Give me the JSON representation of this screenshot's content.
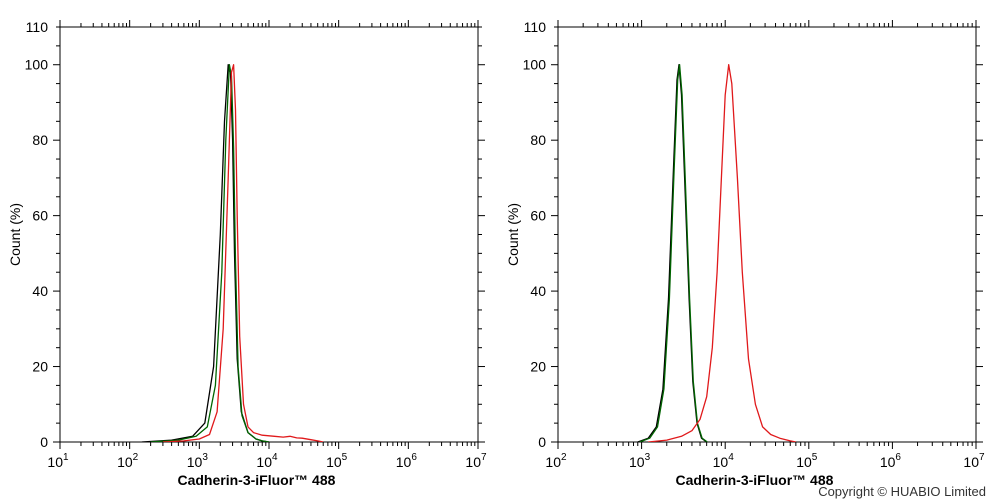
{
  "copyright": "Copyright © HUABIO Limited",
  "chart_data": [
    {
      "type": "line",
      "x_scale": "log",
      "xlim_exp": [
        1,
        7
      ],
      "ylim": [
        0,
        110
      ],
      "y_ticks": [
        0,
        20,
        40,
        60,
        80,
        100,
        110
      ],
      "x_tick_base": "10",
      "x_tick_exponents": [
        "1",
        "2",
        "3",
        "4",
        "5",
        "6",
        "7"
      ],
      "xlabel": "Cadherin-3-iFluor™ 488",
      "ylabel": "Count  (%)",
      "colors": [
        "#000000",
        "#006400",
        "#e0191b"
      ],
      "series": [
        {
          "color": "#000000",
          "x": [
            150,
            400,
            800,
            1200,
            1600,
            2000,
            2300,
            2600,
            2800,
            3000,
            3200,
            3500,
            4000,
            5000,
            6500,
            8000,
            10000
          ],
          "y": [
            0,
            0.5,
            1.5,
            5,
            20,
            55,
            85,
            100,
            98,
            80,
            50,
            22,
            8,
            2.5,
            0.8,
            0.3,
            0
          ]
        },
        {
          "color": "#006400",
          "x": [
            200,
            500,
            900,
            1300,
            1700,
            2100,
            2400,
            2700,
            2900,
            3100,
            3300,
            3600,
            4100,
            5000,
            6500,
            8000,
            10000
          ],
          "y": [
            0,
            0.5,
            1.5,
            4,
            15,
            45,
            80,
            100,
            97,
            78,
            48,
            20,
            7,
            2.5,
            0.8,
            0.3,
            0
          ]
        },
        {
          "color": "#e0191b",
          "x": [
            300,
            600,
            1000,
            1400,
            1800,
            2200,
            2600,
            2900,
            3100,
            3300,
            3500,
            3800,
            4300,
            5000,
            6000,
            8000,
            12000,
            16000,
            20000,
            25000,
            30000,
            40000,
            50000,
            60000
          ],
          "y": [
            0,
            0.3,
            0.8,
            2,
            8,
            30,
            70,
            98,
            100,
            88,
            60,
            28,
            10,
            4,
            2.5,
            1.8,
            1.5,
            1.3,
            1.5,
            1.1,
            1,
            0.6,
            0.3,
            0
          ]
        }
      ]
    },
    {
      "type": "line",
      "x_scale": "log",
      "xlim_exp": [
        2,
        7
      ],
      "ylim": [
        0,
        110
      ],
      "y_ticks": [
        0,
        20,
        40,
        60,
        80,
        100,
        110
      ],
      "x_tick_base": "10",
      "x_tick_exponents": [
        "2",
        "3",
        "4",
        "5",
        "6",
        "7"
      ],
      "xlabel": "Cadherin-3-iFluor™ 488",
      "ylabel": "Count  (%)",
      "colors": [
        "#000000",
        "#006400",
        "#e0191b"
      ],
      "series": [
        {
          "color": "#000000",
          "x": [
            900,
            1200,
            1500,
            1800,
            2100,
            2400,
            2650,
            2800,
            3000,
            3300,
            3700,
            4100,
            4600,
            5200,
            6000
          ],
          "y": [
            0,
            1,
            4,
            14,
            38,
            72,
            96,
            100,
            92,
            68,
            38,
            16,
            5,
            1,
            0
          ]
        },
        {
          "color": "#006400",
          "x": [
            950,
            1250,
            1550,
            1850,
            2150,
            2450,
            2700,
            2850,
            3050,
            3350,
            3750,
            4150,
            4650,
            5300,
            6100
          ],
          "y": [
            0,
            1,
            4,
            14,
            38,
            72,
            96,
            100,
            92,
            68,
            38,
            16,
            5,
            1,
            0
          ]
        },
        {
          "color": "#e0191b",
          "x": [
            1200,
            2000,
            3000,
            4000,
            5000,
            6000,
            7000,
            8000,
            9000,
            10000,
            11000,
            12000,
            14000,
            16000,
            19000,
            23000,
            28000,
            35000,
            45000,
            60000,
            70000
          ],
          "y": [
            0,
            0.5,
            1.5,
            3,
            6,
            12,
            25,
            45,
            70,
            92,
            100,
            95,
            70,
            45,
            22,
            10,
            4,
            2,
            1,
            0.3,
            0
          ]
        }
      ]
    }
  ]
}
